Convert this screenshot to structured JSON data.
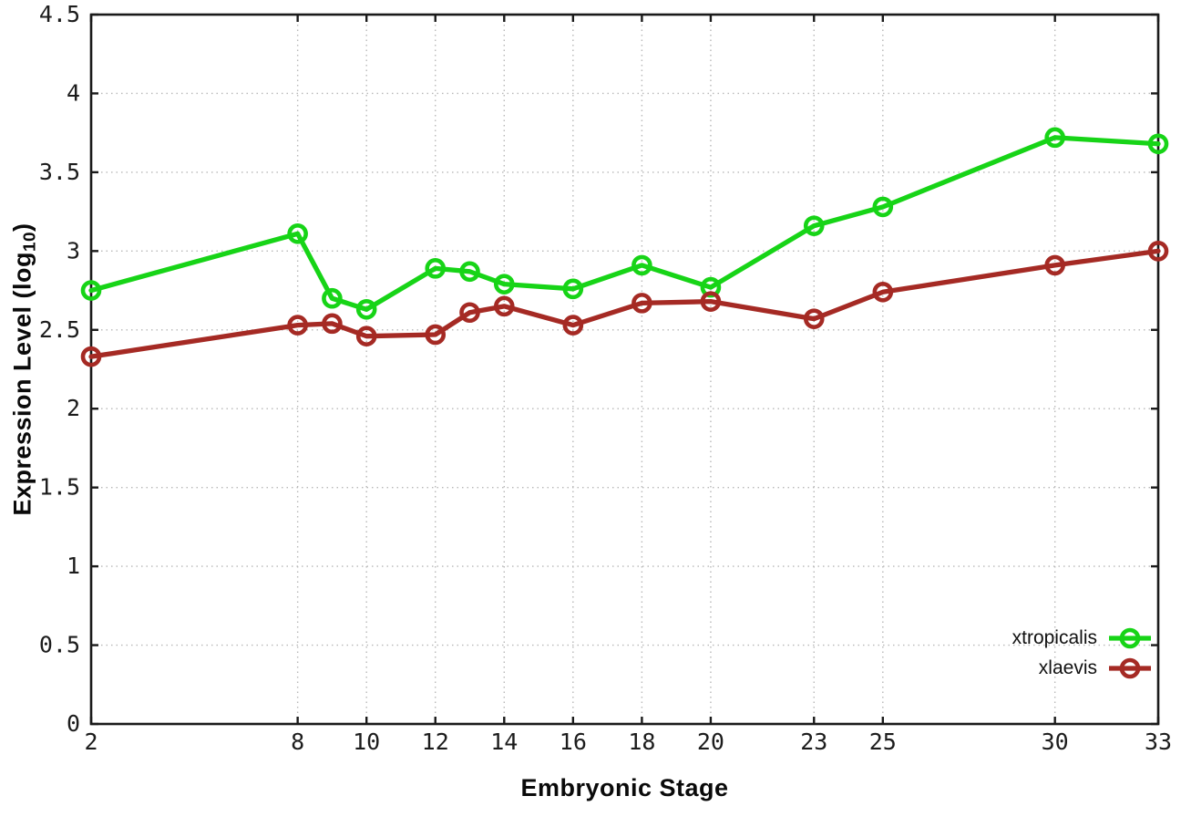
{
  "chart_data": {
    "type": "line",
    "title": "",
    "xlabel": "Embryonic Stage",
    "ylabel": "Expression Level (log10)",
    "xlim": [
      2,
      33
    ],
    "ylim": [
      0,
      4.5
    ],
    "x_ticks": [
      2,
      8,
      10,
      12,
      14,
      16,
      18,
      20,
      23,
      25,
      30,
      33
    ],
    "y_ticks": [
      0,
      0.5,
      1,
      1.5,
      2,
      2.5,
      3,
      3.5,
      4,
      4.5
    ],
    "grid": true,
    "grid_style": "dotted",
    "legend_position": "bottom-right",
    "marker": "open-circle",
    "x": [
      2,
      8,
      9,
      10,
      12,
      13,
      14,
      16,
      18,
      20,
      23,
      25,
      30,
      33
    ],
    "series": [
      {
        "name": "xtropicalis",
        "color": "#17d417",
        "values": [
          2.75,
          3.11,
          2.7,
          2.63,
          2.89,
          2.87,
          2.79,
          2.76,
          2.91,
          2.77,
          3.16,
          3.28,
          3.72,
          3.68
        ]
      },
      {
        "name": "xlaevis",
        "color": "#a52a24",
        "values": [
          2.33,
          2.53,
          2.54,
          2.46,
          2.47,
          2.61,
          2.65,
          2.53,
          2.67,
          2.68,
          2.57,
          2.74,
          2.91,
          3.0
        ]
      }
    ]
  },
  "labels": {
    "xlabel": "Embryonic Stage",
    "ylabel_main": "Expression Level (log",
    "ylabel_sub": "10",
    "ylabel_close": ")"
  },
  "style_colors": {
    "axis": "#1a1a1a",
    "grid": "#b8b8b8",
    "tick_text": "#1c1c1c"
  }
}
